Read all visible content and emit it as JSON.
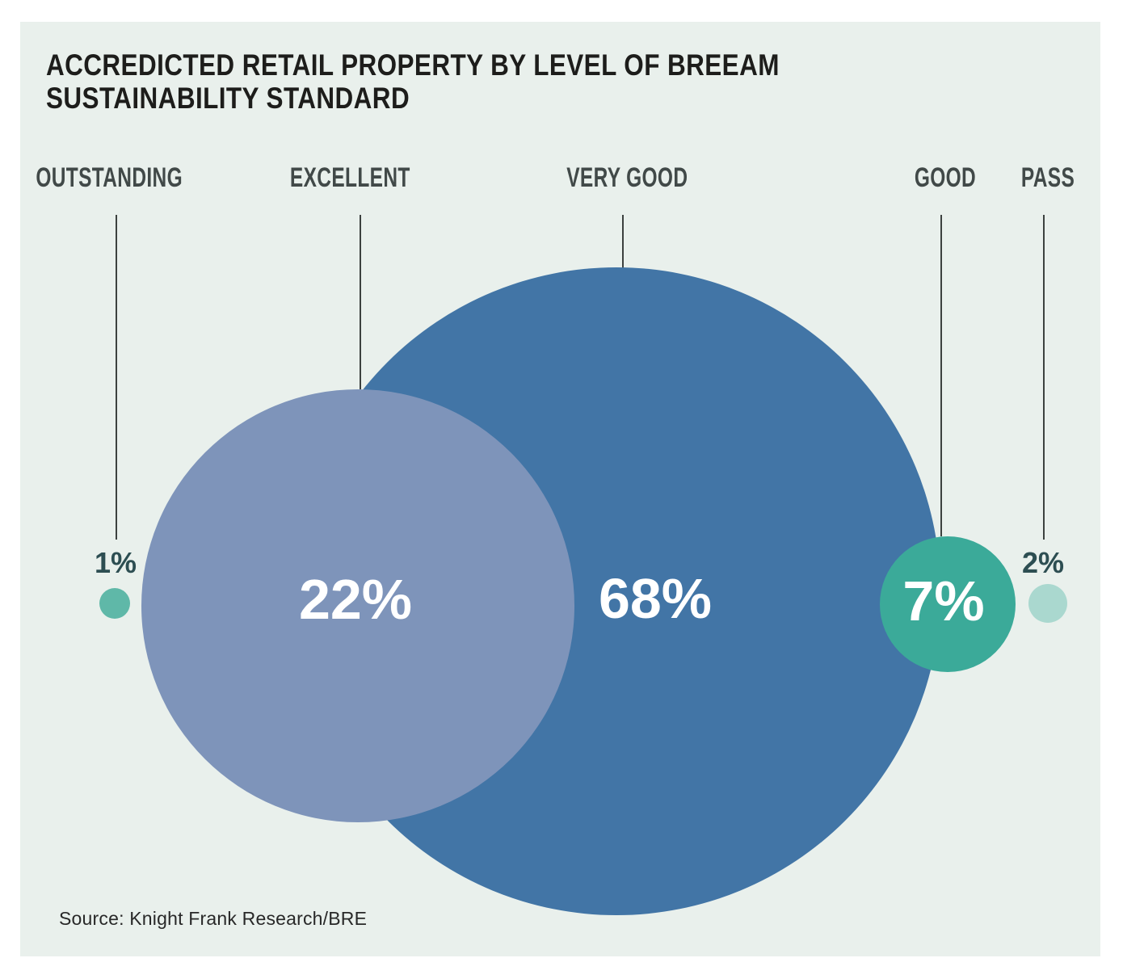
{
  "title": {
    "line1": "ACCREDICTED RETAIL PROPERTY BY LEVEL OF BREEAM",
    "line2": "SUSTAINABILITY STANDARD"
  },
  "categories": [
    {
      "label": "OUTSTANDING",
      "value_label": "1%"
    },
    {
      "label": "EXCELLENT",
      "value_label": "22%"
    },
    {
      "label": "VERY GOOD",
      "value_label": "68%"
    },
    {
      "label": "GOOD",
      "value_label": "7%"
    },
    {
      "label": "PASS",
      "value_label": "2%"
    }
  ],
  "source": "Source: Knight Frank Research/BRE",
  "colors": {
    "panel_background": "#e9f0ec",
    "very_good_circle": "#4275a6",
    "excellent_circle": "#7e94ba",
    "good_circle": "#3baa99",
    "outstanding_dot": "#5fb8a8",
    "pass_dot": "#aad8cf",
    "percent_text_inside": "#ffffff",
    "percent_text_outside": "#2d4e52",
    "category_label_text": "#414948",
    "title_text": "#1d1d1b",
    "leader_line": "#3c413f"
  },
  "chart_data": {
    "type": "bubble",
    "title": "ACCREDICTED RETAIL PROPERTY BY LEVEL OF BREEAM SUSTAINABILITY STANDARD",
    "categories": [
      "OUTSTANDING",
      "EXCELLENT",
      "VERY GOOD",
      "GOOD",
      "PASS"
    ],
    "values": [
      1,
      22,
      68,
      7,
      2
    ],
    "unit": "percent",
    "value_labels": [
      "1%",
      "22%",
      "68%",
      "7%",
      "2%"
    ],
    "series_colors": [
      "#5fb8a8",
      "#7e94ba",
      "#4275a6",
      "#3baa99",
      "#aad8cf"
    ],
    "legend_position": "top",
    "notes": "Circle area proportional to share of accredited retail property; labels connected to circles by vertical leader lines",
    "source": "Source: Knight Frank Research/BRE"
  }
}
